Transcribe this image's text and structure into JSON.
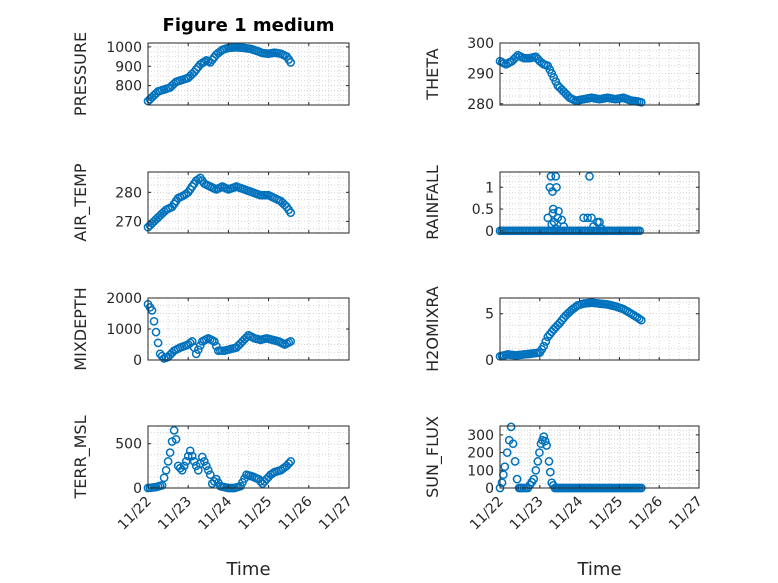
{
  "chart_data": [
    {
      "type": "scatter",
      "title": "Figure 1 medium",
      "ylabel": "PRESSURE",
      "xlabel": "",
      "xlim": [
        0,
        5
      ],
      "ylim": [
        700,
        1020
      ],
      "yticks": [
        800,
        900,
        1000
      ],
      "xtick_labels": [],
      "color": "#0072bd",
      "grid": true,
      "anchors": [
        [
          0.0,
          720
        ],
        [
          0.1,
          740
        ],
        [
          0.25,
          770
        ],
        [
          0.4,
          780
        ],
        [
          0.55,
          790
        ],
        [
          0.7,
          820
        ],
        [
          0.85,
          830
        ],
        [
          1.0,
          840
        ],
        [
          1.15,
          870
        ],
        [
          1.3,
          910
        ],
        [
          1.45,
          930
        ],
        [
          1.55,
          920
        ],
        [
          1.7,
          960
        ],
        [
          1.85,
          985
        ],
        [
          2.0,
          995
        ],
        [
          2.2,
          998
        ],
        [
          2.4,
          994
        ],
        [
          2.55,
          990
        ],
        [
          2.7,
          980
        ],
        [
          2.85,
          968
        ],
        [
          3.0,
          965
        ],
        [
          3.15,
          970
        ],
        [
          3.3,
          965
        ],
        [
          3.45,
          950
        ],
        [
          3.55,
          920
        ]
      ]
    },
    {
      "type": "scatter",
      "title": "",
      "ylabel": "THETA",
      "xlabel": "",
      "xlim": [
        0,
        5
      ],
      "ylim": [
        279.6,
        300
      ],
      "yticks": [
        280,
        290,
        300
      ],
      "xtick_labels": [],
      "color": "#0072bd",
      "grid": true,
      "anchors": [
        [
          0.0,
          294
        ],
        [
          0.15,
          293
        ],
        [
          0.3,
          294
        ],
        [
          0.45,
          296
        ],
        [
          0.6,
          295
        ],
        [
          0.75,
          295
        ],
        [
          0.9,
          295.5
        ],
        [
          1.0,
          294
        ],
        [
          1.1,
          293
        ],
        [
          1.2,
          292.5
        ],
        [
          1.3,
          290
        ],
        [
          1.45,
          286
        ],
        [
          1.6,
          284
        ],
        [
          1.75,
          282
        ],
        [
          1.9,
          281
        ],
        [
          2.1,
          281.5
        ],
        [
          2.3,
          282
        ],
        [
          2.5,
          281.5
        ],
        [
          2.7,
          282
        ],
        [
          2.9,
          281.5
        ],
        [
          3.1,
          282
        ],
        [
          3.3,
          281
        ],
        [
          3.45,
          280.8
        ],
        [
          3.55,
          280.5
        ]
      ]
    },
    {
      "type": "scatter",
      "title": "",
      "ylabel": "AIR_TEMP",
      "xlabel": "",
      "xlim": [
        0,
        5
      ],
      "ylim": [
        266,
        287
      ],
      "yticks": [
        270,
        280
      ],
      "xtick_labels": [],
      "color": "#0072bd",
      "grid": true,
      "anchors": [
        [
          0.0,
          268
        ],
        [
          0.15,
          270
        ],
        [
          0.3,
          272
        ],
        [
          0.45,
          274
        ],
        [
          0.6,
          275
        ],
        [
          0.75,
          278
        ],
        [
          0.9,
          279
        ],
        [
          1.0,
          280
        ],
        [
          1.1,
          282
        ],
        [
          1.2,
          284
        ],
        [
          1.3,
          285
        ],
        [
          1.4,
          283
        ],
        [
          1.55,
          282
        ],
        [
          1.7,
          281
        ],
        [
          1.85,
          282
        ],
        [
          2.0,
          281
        ],
        [
          2.2,
          282
        ],
        [
          2.4,
          281
        ],
        [
          2.6,
          280
        ],
        [
          2.8,
          279
        ],
        [
          3.0,
          279
        ],
        [
          3.15,
          278
        ],
        [
          3.3,
          277
        ],
        [
          3.45,
          275
        ],
        [
          3.55,
          273
        ]
      ]
    },
    {
      "type": "scatter",
      "title": "",
      "ylabel": "RAINFALL",
      "xlabel": "",
      "xlim": [
        0,
        5
      ],
      "ylim": [
        -0.05,
        1.35
      ],
      "yticks": [
        0,
        0.5,
        1
      ],
      "xtick_labels": [],
      "color": "#0072bd",
      "grid": true,
      "baseline": 0,
      "baseline_range": [
        0,
        3.55
      ],
      "points": [
        [
          1.2,
          0.3
        ],
        [
          1.25,
          1.0
        ],
        [
          1.28,
          1.25
        ],
        [
          1.32,
          0.9
        ],
        [
          1.34,
          0.5
        ],
        [
          1.36,
          0.2
        ],
        [
          1.4,
          0.05
        ],
        [
          1.3,
          0.15
        ],
        [
          1.33,
          0.4
        ],
        [
          1.4,
          1.25
        ],
        [
          1.42,
          1.0
        ],
        [
          1.47,
          0.45
        ],
        [
          1.45,
          0.3
        ],
        [
          1.5,
          0.0
        ],
        [
          1.55,
          0.25
        ],
        [
          1.6,
          0.1
        ],
        [
          2.1,
          0.3
        ],
        [
          2.15,
          0.0
        ],
        [
          2.2,
          0.3
        ],
        [
          2.25,
          1.25
        ],
        [
          2.3,
          0.3
        ],
        [
          2.35,
          0.1
        ],
        [
          2.4,
          0.0
        ],
        [
          2.45,
          0.2
        ],
        [
          2.5,
          0.2
        ],
        [
          2.55,
          0.05
        ],
        [
          2.6,
          0.0
        ]
      ]
    },
    {
      "type": "scatter",
      "title": "",
      "ylabel": "MIXDEPTH",
      "xlabel": "",
      "xlim": [
        0,
        5
      ],
      "ylim": [
        0,
        2000
      ],
      "yticks": [
        0,
        1000,
        2000
      ],
      "xtick_labels": [],
      "color": "#0072bd",
      "grid": true,
      "anchors": [
        [
          0.0,
          1800
        ],
        [
          0.1,
          1600
        ],
        [
          0.2,
          900
        ],
        [
          0.3,
          200
        ],
        [
          0.4,
          50
        ],
        [
          0.5,
          100
        ],
        [
          0.65,
          300
        ],
        [
          0.8,
          400
        ],
        [
          1.0,
          500
        ],
        [
          1.1,
          600
        ],
        [
          1.2,
          200
        ],
        [
          1.35,
          600
        ],
        [
          1.5,
          700
        ],
        [
          1.65,
          600
        ],
        [
          1.75,
          300
        ],
        [
          1.9,
          300
        ],
        [
          2.05,
          350
        ],
        [
          2.2,
          400
        ],
        [
          2.35,
          600
        ],
        [
          2.5,
          800
        ],
        [
          2.65,
          700
        ],
        [
          2.8,
          650
        ],
        [
          2.95,
          700
        ],
        [
          3.1,
          650
        ],
        [
          3.25,
          600
        ],
        [
          3.4,
          500
        ],
        [
          3.55,
          600
        ]
      ]
    },
    {
      "type": "scatter",
      "title": "",
      "ylabel": "H2OMIXRA",
      "xlabel": "",
      "xlim": [
        0,
        5
      ],
      "ylim": [
        0,
        6.7
      ],
      "yticks": [
        0,
        5
      ],
      "xtick_labels": [],
      "color": "#0072bd",
      "grid": true,
      "anchors": [
        [
          0.0,
          0.4
        ],
        [
          0.2,
          0.6
        ],
        [
          0.4,
          0.5
        ],
        [
          0.6,
          0.6
        ],
        [
          0.8,
          0.7
        ],
        [
          1.0,
          0.8
        ],
        [
          1.1,
          1.5
        ],
        [
          1.2,
          2.5
        ],
        [
          1.35,
          3.3
        ],
        [
          1.5,
          4.0
        ],
        [
          1.65,
          4.8
        ],
        [
          1.8,
          5.4
        ],
        [
          1.95,
          5.9
        ],
        [
          2.1,
          6.1
        ],
        [
          2.3,
          6.2
        ],
        [
          2.5,
          6.1
        ],
        [
          2.7,
          6.0
        ],
        [
          2.9,
          5.8
        ],
        [
          3.1,
          5.5
        ],
        [
          3.3,
          5.0
        ],
        [
          3.45,
          4.6
        ],
        [
          3.55,
          4.3
        ]
      ]
    },
    {
      "type": "scatter",
      "title": "",
      "ylabel": "TERR_MSL",
      "xlabel": "Time",
      "xlim": [
        0,
        5
      ],
      "ylim": [
        0,
        700
      ],
      "yticks": [
        0,
        500
      ],
      "xtick_labels": [
        "11/22",
        "11/23",
        "11/24",
        "11/25",
        "11/26",
        "11/27"
      ],
      "color": "#0072bd",
      "grid": true,
      "anchors": [
        [
          0.0,
          0
        ],
        [
          0.2,
          10
        ],
        [
          0.35,
          30
        ],
        [
          0.45,
          200
        ],
        [
          0.55,
          400
        ],
        [
          0.65,
          650
        ],
        [
          0.7,
          550
        ],
        [
          0.75,
          250
        ],
        [
          0.85,
          200
        ],
        [
          0.95,
          300
        ],
        [
          1.05,
          420
        ],
        [
          1.15,
          300
        ],
        [
          1.25,
          200
        ],
        [
          1.35,
          350
        ],
        [
          1.45,
          250
        ],
        [
          1.55,
          150
        ],
        [
          1.6,
          50
        ],
        [
          1.7,
          100
        ],
        [
          1.8,
          20
        ],
        [
          2.0,
          0
        ],
        [
          2.15,
          0
        ],
        [
          2.3,
          20
        ],
        [
          2.45,
          150
        ],
        [
          2.6,
          130
        ],
        [
          2.75,
          100
        ],
        [
          2.85,
          50
        ],
        [
          2.95,
          100
        ],
        [
          3.05,
          150
        ],
        [
          3.15,
          180
        ],
        [
          3.3,
          200
        ],
        [
          3.45,
          250
        ],
        [
          3.55,
          300
        ]
      ]
    },
    {
      "type": "scatter",
      "title": "",
      "ylabel": "SUN_FLUX",
      "xlabel": "Time",
      "xlim": [
        0,
        5
      ],
      "ylim": [
        0,
        350
      ],
      "yticks": [
        0,
        100,
        200,
        300
      ],
      "xtick_labels": [
        "11/22",
        "11/23",
        "11/24",
        "11/25",
        "11/26",
        "11/27"
      ],
      "color": "#0072bd",
      "grid": true,
      "anchors": [
        [
          0.0,
          0
        ],
        [
          0.05,
          30
        ],
        [
          0.12,
          120
        ],
        [
          0.18,
          200
        ],
        [
          0.23,
          270
        ],
        [
          0.28,
          345
        ],
        [
          0.33,
          250
        ],
        [
          0.38,
          150
        ],
        [
          0.43,
          50
        ],
        [
          0.48,
          0
        ],
        [
          0.55,
          0
        ],
        [
          0.7,
          0
        ],
        [
          0.85,
          50
        ],
        [
          0.95,
          150
        ],
        [
          1.03,
          250
        ],
        [
          1.1,
          290
        ],
        [
          1.17,
          240
        ],
        [
          1.23,
          150
        ],
        [
          1.3,
          30
        ],
        [
          1.38,
          0
        ],
        [
          1.5,
          0
        ],
        [
          3.55,
          0
        ]
      ]
    }
  ]
}
